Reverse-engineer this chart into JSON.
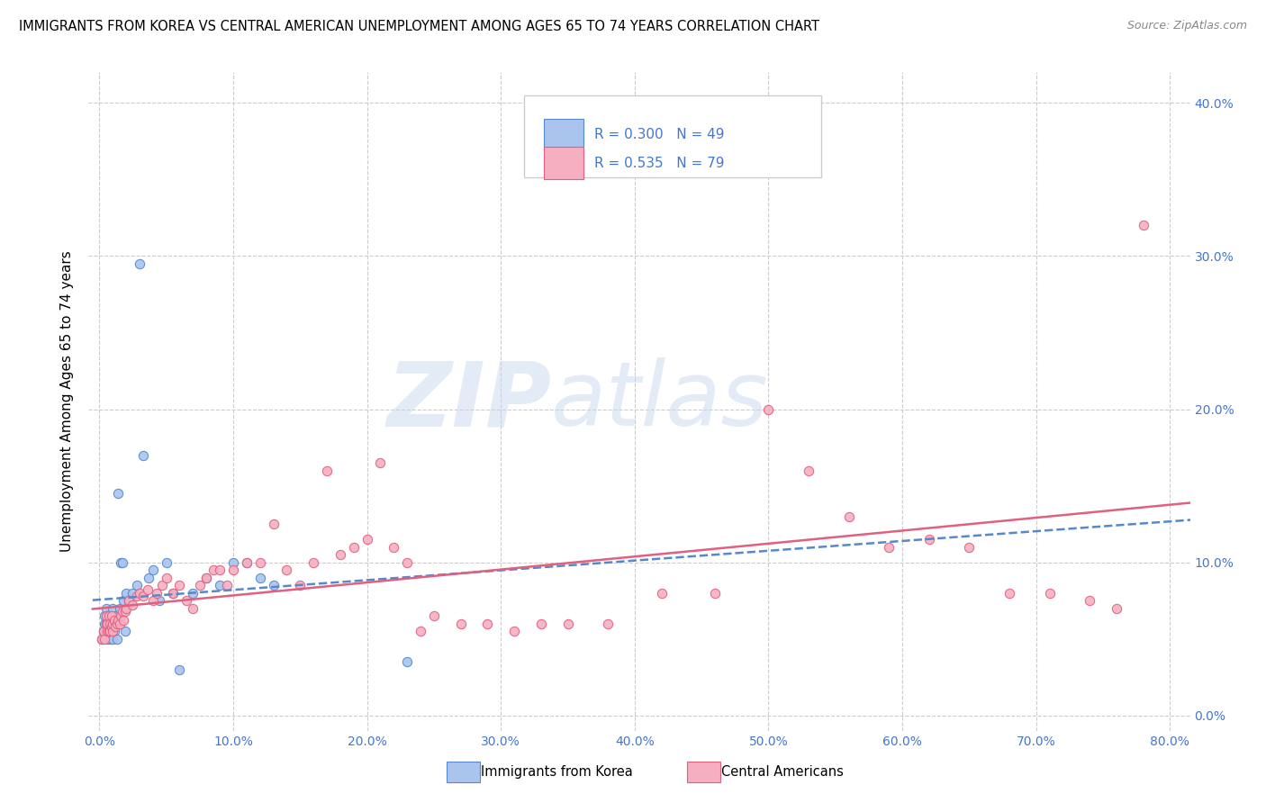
{
  "title": "IMMIGRANTS FROM KOREA VS CENTRAL AMERICAN UNEMPLOYMENT AMONG AGES 65 TO 74 YEARS CORRELATION CHART",
  "source": "Source: ZipAtlas.com",
  "ylabel": "Unemployment Among Ages 65 to 74 years",
  "xlim": [
    0.0,
    0.8
  ],
  "ylim": [
    -0.01,
    0.42
  ],
  "xticks": [
    0.0,
    0.1,
    0.2,
    0.3,
    0.4,
    0.5,
    0.6,
    0.7,
    0.8
  ],
  "yticks": [
    0.0,
    0.1,
    0.2,
    0.3,
    0.4
  ],
  "korea_color": "#aac4ee",
  "central_color": "#f5afc0",
  "korea_R": 0.3,
  "korea_N": 49,
  "central_R": 0.535,
  "central_N": 79,
  "korea_line_color": "#5588cc",
  "central_line_color": "#e06080",
  "watermark": "ZIPatlas",
  "legend_label_korea": "Immigrants from Korea",
  "legend_label_central": "Central Americans",
  "background_color": "#ffffff",
  "grid_color": "#cccccc",
  "korea_scatter_x": [
    0.002,
    0.003,
    0.004,
    0.004,
    0.005,
    0.005,
    0.005,
    0.006,
    0.006,
    0.007,
    0.007,
    0.008,
    0.008,
    0.009,
    0.009,
    0.01,
    0.01,
    0.011,
    0.011,
    0.012,
    0.012,
    0.013,
    0.013,
    0.014,
    0.015,
    0.016,
    0.017,
    0.018,
    0.019,
    0.02,
    0.022,
    0.025,
    0.028,
    0.03,
    0.033,
    0.037,
    0.04,
    0.045,
    0.05,
    0.055,
    0.06,
    0.07,
    0.08,
    0.09,
    0.1,
    0.11,
    0.12,
    0.13,
    0.23
  ],
  "korea_scatter_y": [
    0.05,
    0.055,
    0.06,
    0.065,
    0.055,
    0.06,
    0.07,
    0.05,
    0.065,
    0.055,
    0.06,
    0.05,
    0.065,
    0.06,
    0.055,
    0.05,
    0.07,
    0.055,
    0.06,
    0.06,
    0.065,
    0.05,
    0.06,
    0.145,
    0.07,
    0.1,
    0.1,
    0.075,
    0.055,
    0.08,
    0.075,
    0.08,
    0.085,
    0.295,
    0.17,
    0.09,
    0.095,
    0.075,
    0.1,
    0.08,
    0.03,
    0.08,
    0.09,
    0.085,
    0.1,
    0.1,
    0.09,
    0.085,
    0.035
  ],
  "central_scatter_x": [
    0.002,
    0.003,
    0.004,
    0.005,
    0.005,
    0.006,
    0.006,
    0.007,
    0.007,
    0.008,
    0.008,
    0.009,
    0.009,
    0.01,
    0.01,
    0.011,
    0.012,
    0.013,
    0.014,
    0.015,
    0.016,
    0.017,
    0.018,
    0.019,
    0.02,
    0.022,
    0.025,
    0.028,
    0.03,
    0.033,
    0.036,
    0.04,
    0.043,
    0.047,
    0.05,
    0.055,
    0.06,
    0.065,
    0.07,
    0.075,
    0.08,
    0.085,
    0.09,
    0.095,
    0.1,
    0.11,
    0.12,
    0.13,
    0.14,
    0.15,
    0.16,
    0.17,
    0.18,
    0.19,
    0.2,
    0.21,
    0.22,
    0.23,
    0.24,
    0.25,
    0.27,
    0.29,
    0.31,
    0.33,
    0.35,
    0.38,
    0.42,
    0.46,
    0.5,
    0.53,
    0.56,
    0.59,
    0.62,
    0.65,
    0.68,
    0.71,
    0.74,
    0.76,
    0.78
  ],
  "central_scatter_y": [
    0.05,
    0.055,
    0.05,
    0.06,
    0.065,
    0.055,
    0.06,
    0.055,
    0.065,
    0.055,
    0.06,
    0.058,
    0.065,
    0.055,
    0.06,
    0.062,
    0.058,
    0.06,
    0.062,
    0.06,
    0.065,
    0.068,
    0.062,
    0.068,
    0.07,
    0.075,
    0.072,
    0.078,
    0.08,
    0.078,
    0.082,
    0.075,
    0.08,
    0.085,
    0.09,
    0.08,
    0.085,
    0.075,
    0.07,
    0.085,
    0.09,
    0.095,
    0.095,
    0.085,
    0.095,
    0.1,
    0.1,
    0.125,
    0.095,
    0.085,
    0.1,
    0.16,
    0.105,
    0.11,
    0.115,
    0.165,
    0.11,
    0.1,
    0.055,
    0.065,
    0.06,
    0.06,
    0.055,
    0.06,
    0.06,
    0.06,
    0.08,
    0.08,
    0.2,
    0.16,
    0.13,
    0.11,
    0.115,
    0.11,
    0.08,
    0.08,
    0.075,
    0.07,
    0.32
  ]
}
